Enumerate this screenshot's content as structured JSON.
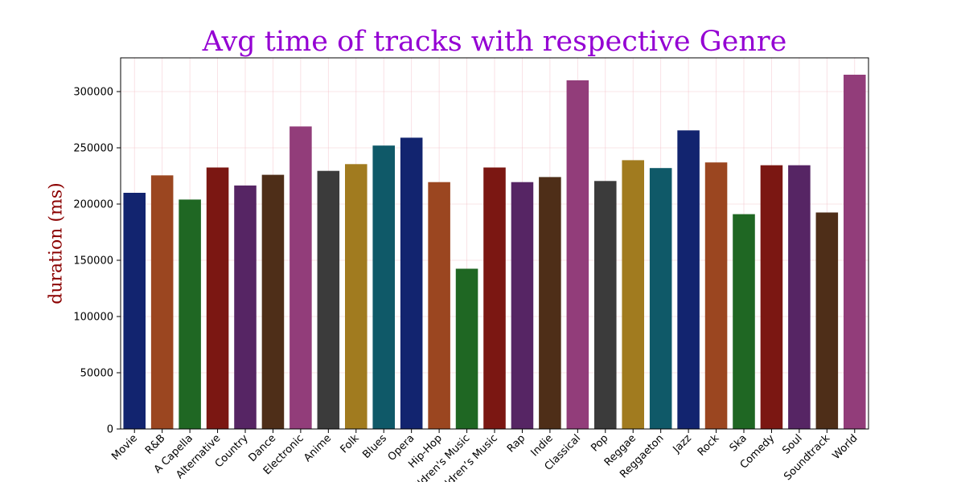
{
  "chart_data": {
    "type": "bar",
    "title": "Avg time of tracks with respective Genre",
    "xlabel": "",
    "ylabel": "duration (ms)",
    "ylim": [
      0,
      330000
    ],
    "yticks": [
      0,
      50000,
      100000,
      150000,
      200000,
      250000,
      300000
    ],
    "grid": true,
    "categories": [
      "Movie",
      "R&B",
      "A Capella",
      "Alternative",
      "Country",
      "Dance",
      "Electronic",
      "Anime",
      "Folk",
      "Blues",
      "Opera",
      "Hip-Hop",
      "Children's Music",
      "Children’s Music",
      "Rap",
      "Indie",
      "Classical",
      "Pop",
      "Reggae",
      "Reggaeton",
      "Jazz",
      "Rock",
      "Ska",
      "Comedy",
      "Soul",
      "Soundtrack",
      "World"
    ],
    "values": [
      210000,
      225500,
      204000,
      232500,
      216500,
      226000,
      269000,
      229500,
      235500,
      252000,
      259000,
      219500,
      142500,
      232500,
      219500,
      224000,
      310000,
      220500,
      239000,
      232000,
      265500,
      237000,
      191000,
      234500,
      234500,
      192500,
      315000
    ],
    "colors": [
      "#12246f",
      "#9b4620",
      "#1f6723",
      "#7b1712",
      "#562564",
      "#4e2e18",
      "#923d7a",
      "#3b3b3b",
      "#a17b1f",
      "#0f5968",
      "#12246f",
      "#9b4620",
      "#1f6723",
      "#7b1712",
      "#562564",
      "#4e2e18",
      "#923d7a",
      "#3b3b3b",
      "#a17b1f",
      "#0f5968",
      "#12246f",
      "#9b4620",
      "#1f6723",
      "#7b1712",
      "#562564",
      "#4e2e18",
      "#923d7a"
    ]
  }
}
